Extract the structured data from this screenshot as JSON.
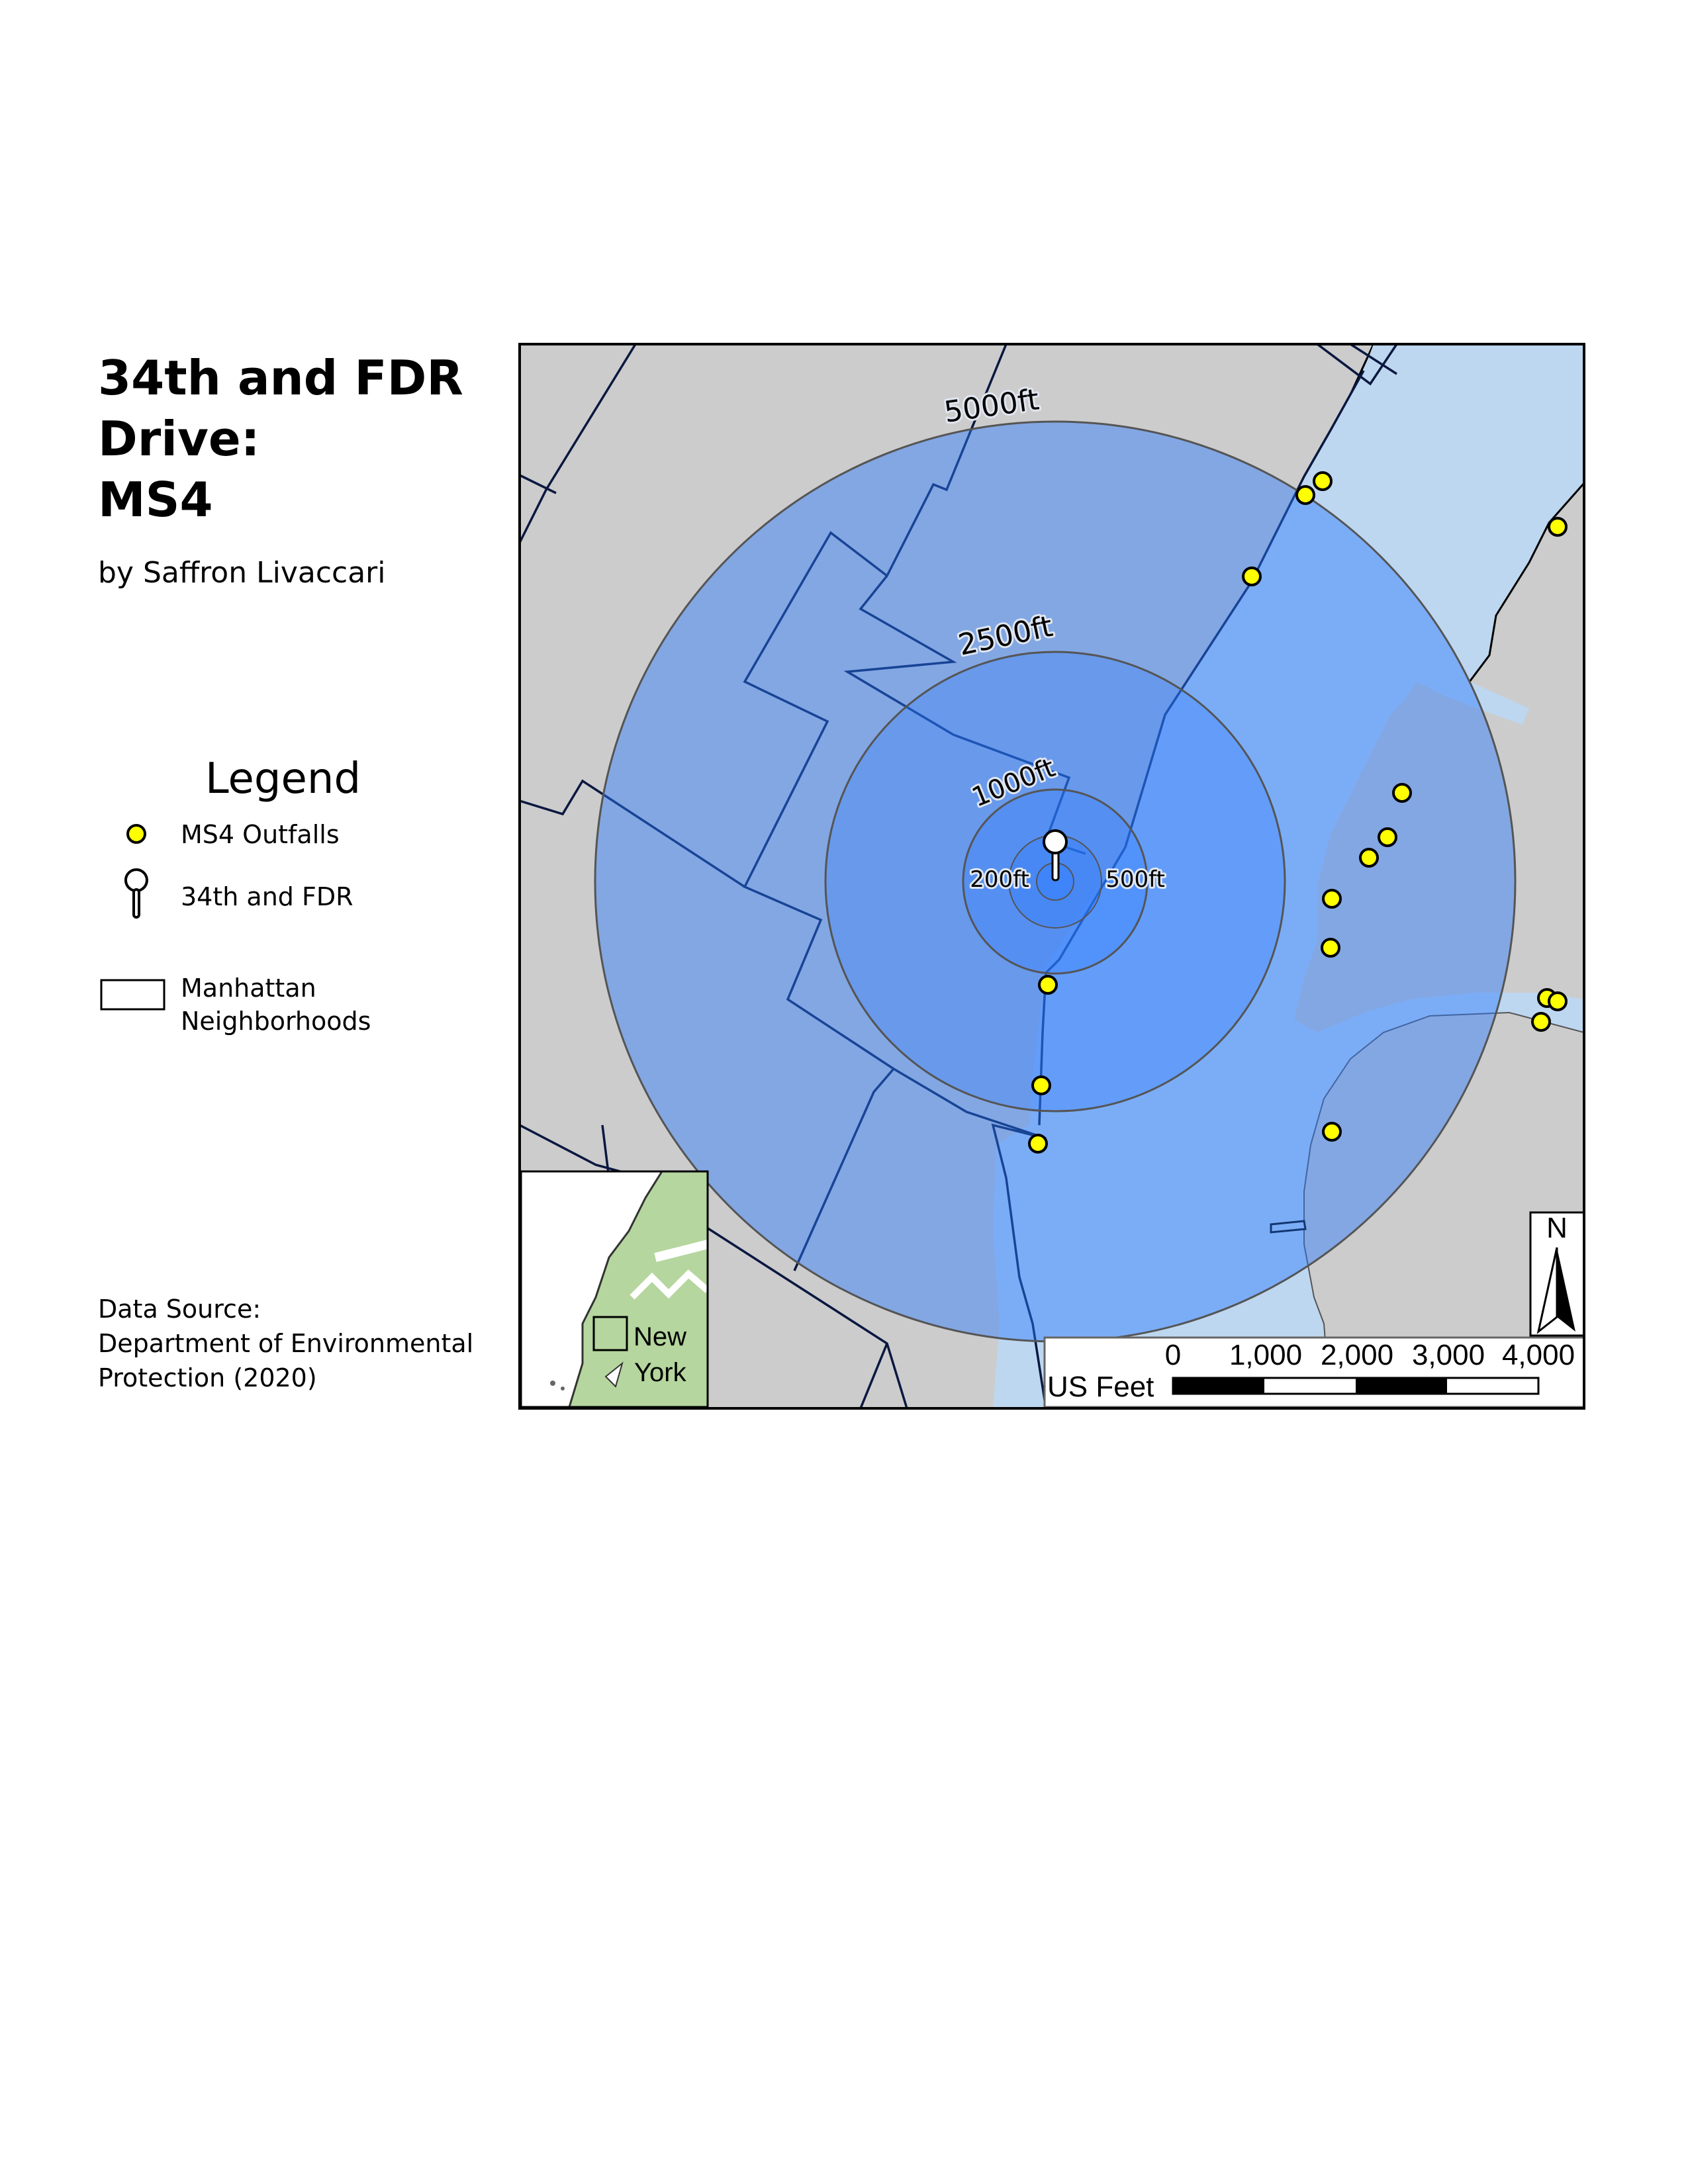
{
  "title_lines": [
    "34th and FDR",
    "Drive:",
    "MS4"
  ],
  "author": "by Saffron Livaccari",
  "legend": {
    "title": "Legend",
    "outfalls": "MS4 Outfalls",
    "site": "34th and FDR",
    "neighborhoods_line1": "Manhattan",
    "neighborhoods_line2": "Neighborhoods"
  },
  "source_lines": [
    "Data Source:",
    "Department of Environmental",
    "Protection (2020)"
  ],
  "rings": {
    "r5000": "5000ft",
    "r2500": "2500ft",
    "r1000": "1000ft",
    "r500": "500ft",
    "r200": "200ft"
  },
  "inset": {
    "label_line1": "New",
    "label_line2": "York"
  },
  "north": "N",
  "scale": {
    "unit": "US Feet",
    "ticks": [
      "0",
      "1,000",
      "2,000",
      "3,000",
      "4,000"
    ]
  },
  "colors": {
    "land": "#cccccc",
    "water": "#bed7f0",
    "outfall": "#ffff00",
    "buffer": "#2b7bff",
    "inset_land": "#b5d69e"
  }
}
